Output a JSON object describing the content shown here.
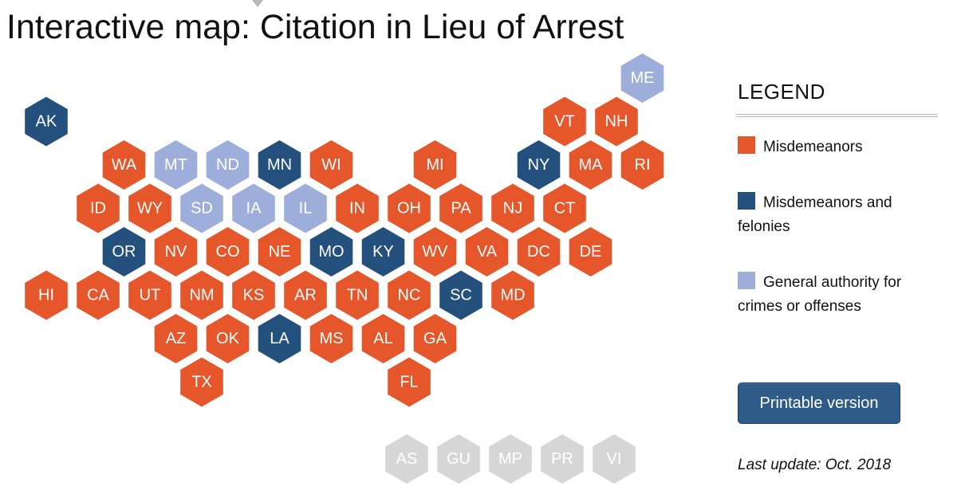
{
  "title": "Interactive map: Citation in Lieu of Arrest",
  "legend": {
    "heading": "LEGEND",
    "items": [
      {
        "label": "Misdemeanors",
        "category": "misdemeanors",
        "color": "#e5562a"
      },
      {
        "label": "Misdemeanors and felonies",
        "category": "misdemeanors_felonies",
        "color": "#24507e"
      },
      {
        "label": "General authority for crimes or offenses",
        "category": "general_authority",
        "color": "#9eaedb"
      }
    ]
  },
  "territory_color": "#d6d6d6",
  "printable_button": "Printable version",
  "last_update": "Last update: Oct. 2018",
  "states": [
    {
      "code": "ME",
      "category": "general_authority",
      "row": 0,
      "col": 11
    },
    {
      "code": "AK",
      "category": "misdemeanors_felonies",
      "row": 1,
      "col": 0
    },
    {
      "code": "VT",
      "category": "misdemeanors",
      "row": 1,
      "col": 10
    },
    {
      "code": "NH",
      "category": "misdemeanors",
      "row": 1,
      "col": 11
    },
    {
      "code": "WA",
      "category": "misdemeanors",
      "row": 2,
      "col": 1
    },
    {
      "code": "MT",
      "category": "general_authority",
      "row": 2,
      "col": 2
    },
    {
      "code": "ND",
      "category": "general_authority",
      "row": 2,
      "col": 3
    },
    {
      "code": "MN",
      "category": "misdemeanors_felonies",
      "row": 2,
      "col": 4
    },
    {
      "code": "WI",
      "category": "misdemeanors",
      "row": 2,
      "col": 5
    },
    {
      "code": "MI",
      "category": "misdemeanors",
      "row": 2,
      "col": 7
    },
    {
      "code": "NY",
      "category": "misdemeanors_felonies",
      "row": 2,
      "col": 9
    },
    {
      "code": "MA",
      "category": "misdemeanors",
      "row": 2,
      "col": 10
    },
    {
      "code": "RI",
      "category": "misdemeanors",
      "row": 2,
      "col": 11
    },
    {
      "code": "ID",
      "category": "misdemeanors",
      "row": 3,
      "col": 1
    },
    {
      "code": "WY",
      "category": "misdemeanors",
      "row": 3,
      "col": 2
    },
    {
      "code": "SD",
      "category": "general_authority",
      "row": 3,
      "col": 3
    },
    {
      "code": "IA",
      "category": "general_authority",
      "row": 3,
      "col": 4
    },
    {
      "code": "IL",
      "category": "general_authority",
      "row": 3,
      "col": 5
    },
    {
      "code": "IN",
      "category": "misdemeanors",
      "row": 3,
      "col": 6
    },
    {
      "code": "OH",
      "category": "misdemeanors",
      "row": 3,
      "col": 7
    },
    {
      "code": "PA",
      "category": "misdemeanors",
      "row": 3,
      "col": 8
    },
    {
      "code": "NJ",
      "category": "misdemeanors",
      "row": 3,
      "col": 9
    },
    {
      "code": "CT",
      "category": "misdemeanors",
      "row": 3,
      "col": 10
    },
    {
      "code": "OR",
      "category": "misdemeanors_felonies",
      "row": 4,
      "col": 1
    },
    {
      "code": "NV",
      "category": "misdemeanors",
      "row": 4,
      "col": 2
    },
    {
      "code": "CO",
      "category": "misdemeanors",
      "row": 4,
      "col": 3
    },
    {
      "code": "NE",
      "category": "misdemeanors",
      "row": 4,
      "col": 4
    },
    {
      "code": "MO",
      "category": "misdemeanors_felonies",
      "row": 4,
      "col": 5
    },
    {
      "code": "KY",
      "category": "misdemeanors_felonies",
      "row": 4,
      "col": 6
    },
    {
      "code": "WV",
      "category": "misdemeanors",
      "row": 4,
      "col": 7
    },
    {
      "code": "VA",
      "category": "misdemeanors",
      "row": 4,
      "col": 8
    },
    {
      "code": "DC",
      "category": "misdemeanors",
      "row": 4,
      "col": 9
    },
    {
      "code": "DE",
      "category": "misdemeanors",
      "row": 4,
      "col": 10
    },
    {
      "code": "HI",
      "category": "misdemeanors",
      "row": 5,
      "col": 0
    },
    {
      "code": "CA",
      "category": "misdemeanors",
      "row": 5,
      "col": 1
    },
    {
      "code": "UT",
      "category": "misdemeanors",
      "row": 5,
      "col": 2
    },
    {
      "code": "NM",
      "category": "misdemeanors",
      "row": 5,
      "col": 3
    },
    {
      "code": "KS",
      "category": "misdemeanors",
      "row": 5,
      "col": 4
    },
    {
      "code": "AR",
      "category": "misdemeanors",
      "row": 5,
      "col": 5
    },
    {
      "code": "TN",
      "category": "misdemeanors",
      "row": 5,
      "col": 6
    },
    {
      "code": "NC",
      "category": "misdemeanors",
      "row": 5,
      "col": 7
    },
    {
      "code": "SC",
      "category": "misdemeanors_felonies",
      "row": 5,
      "col": 8
    },
    {
      "code": "MD",
      "category": "misdemeanors",
      "row": 5,
      "col": 9
    },
    {
      "code": "AZ",
      "category": "misdemeanors",
      "row": 6,
      "col": 2
    },
    {
      "code": "OK",
      "category": "misdemeanors",
      "row": 6,
      "col": 3
    },
    {
      "code": "LA",
      "category": "misdemeanors_felonies",
      "row": 6,
      "col": 4
    },
    {
      "code": "MS",
      "category": "misdemeanors",
      "row": 6,
      "col": 5
    },
    {
      "code": "AL",
      "category": "misdemeanors",
      "row": 6,
      "col": 6
    },
    {
      "code": "GA",
      "category": "misdemeanors",
      "row": 6,
      "col": 7
    },
    {
      "code": "TX",
      "category": "misdemeanors",
      "row": 7,
      "col": 3
    },
    {
      "code": "FL",
      "category": "misdemeanors",
      "row": 7,
      "col": 7
    }
  ],
  "territories": [
    "AS",
    "GU",
    "MP",
    "PR",
    "VI"
  ]
}
